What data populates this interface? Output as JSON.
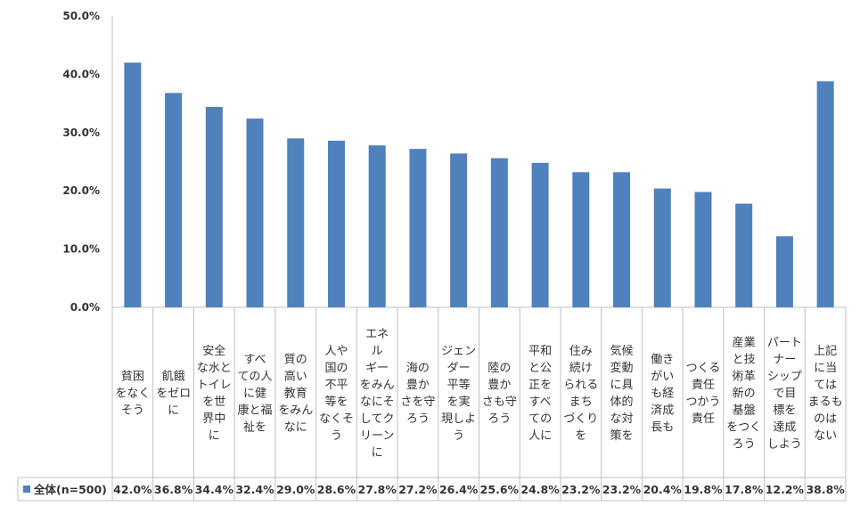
{
  "chart_data": {
    "type": "bar",
    "title": "",
    "xlabel": "",
    "ylabel": "",
    "ylim": [
      0,
      50
    ],
    "yticks": [
      "0.0%",
      "10.0%",
      "20.0%",
      "30.0%",
      "40.0%",
      "50.0%"
    ],
    "grid": false,
    "legend_position": "bottom-left (data table)",
    "categories": [
      "貧困をなくそう",
      "飢餓をゼロに",
      "安全な水とトイレを世界中に",
      "すべての人に健康と福祉を",
      "質の高い教育をみんなに",
      "人や国の不平等をなくそう",
      "エネルギーをみんなにそしてクリーンに",
      "海の豊かさを守ろう",
      "ジェンダー平等を実現しよう",
      "陸の豊かさも守ろう",
      "平和と公正をすべての人に",
      "住み続けられるまちづくりを",
      "気候変動に具体的な対策を",
      "働きがいも経済成長も",
      "つくる責任つかう責任",
      "産業と技術革新の基盤をつくろう",
      "パートナーシップで目標を達成しよう",
      "上記に当てはまるものはない"
    ],
    "category_lines": [
      [
        "貧困",
        "をなく",
        "そう"
      ],
      [
        "飢餓",
        "をゼロ",
        "に"
      ],
      [
        "安全",
        "な水と",
        "トイレ",
        "を世",
        "界中",
        "に"
      ],
      [
        "すべ",
        "ての人",
        "に健",
        "康と福",
        "祉を"
      ],
      [
        "質の",
        "高い",
        "教育",
        "をみん",
        "なに"
      ],
      [
        "人や",
        "国の",
        "不平",
        "等を",
        "なくそ",
        "う"
      ],
      [
        "エネ",
        "ル",
        "ギー",
        "をみん",
        "なにそ",
        "してク",
        "リーン",
        "に"
      ],
      [
        "海の",
        "豊か",
        "さを守",
        "ろう"
      ],
      [
        "ジェン",
        "ダー",
        "平等",
        "を実",
        "現しよ",
        "う"
      ],
      [
        "陸の",
        "豊か",
        "さも守",
        "ろう"
      ],
      [
        "平和",
        "と公",
        "正を",
        "すべ",
        "ての",
        "人に"
      ],
      [
        "住み",
        "続け",
        "られる",
        "まち",
        "づくり",
        "を"
      ],
      [
        "気候",
        "変動",
        "に具",
        "体的",
        "な対",
        "策を"
      ],
      [
        "働き",
        "がい",
        "も経",
        "済成",
        "長も"
      ],
      [
        "つくる",
        "責任",
        "つかう",
        "責任"
      ],
      [
        "産業",
        "と技",
        "術革",
        "新の",
        "基盤",
        "をつく",
        "ろう"
      ],
      [
        "パート",
        "ナー",
        "シップ",
        "で目",
        "標を",
        "達成",
        "しよう"
      ],
      [
        "上記",
        "に当",
        "ては",
        "まるも",
        "のは",
        "ない"
      ]
    ],
    "series": [
      {
        "name": "全体(n=500)",
        "color": "#4f81bd",
        "values": [
          42.0,
          36.8,
          34.4,
          32.4,
          29.0,
          28.6,
          27.8,
          27.2,
          26.4,
          25.6,
          24.8,
          23.2,
          23.2,
          20.4,
          19.8,
          17.8,
          12.2,
          38.8
        ],
        "labels": [
          "42.0%",
          "36.8%",
          "34.4%",
          "32.4%",
          "29.0%",
          "28.6%",
          "27.8%",
          "27.2%",
          "26.4%",
          "25.6%",
          "24.8%",
          "23.2%",
          "23.2%",
          "20.4%",
          "19.8%",
          "17.8%",
          "12.2%",
          "38.8%"
        ]
      }
    ]
  }
}
